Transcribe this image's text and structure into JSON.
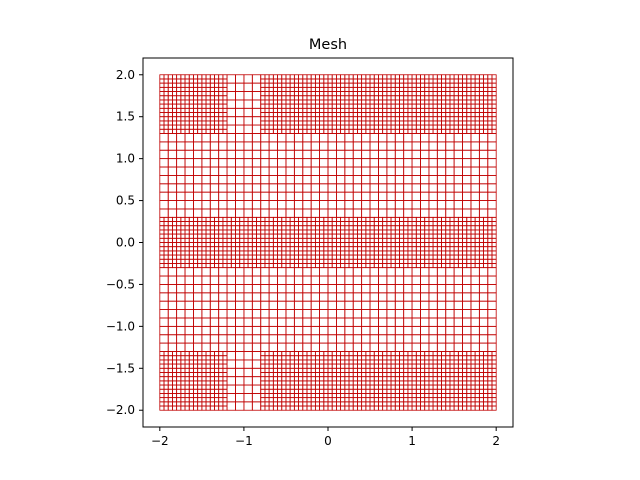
{
  "chart_data": {
    "type": "mesh",
    "title": "Mesh",
    "xlabel": "",
    "ylabel": "",
    "xlim": [
      -2.2,
      2.2
    ],
    "ylim": [
      -2.2,
      2.2
    ],
    "x_ticks": [
      -2,
      -1,
      0,
      1,
      2
    ],
    "x_tick_labels": [
      "−2",
      "−1",
      "0",
      "1",
      "2"
    ],
    "y_ticks": [
      -2.0,
      -1.5,
      -1.0,
      -0.5,
      0.0,
      0.5,
      1.0,
      1.5,
      2.0
    ],
    "y_tick_labels": [
      "−2.0",
      "−1.5",
      "−1.0",
      "−0.5",
      "0.0",
      "0.5",
      "1.0",
      "1.5",
      "2.0"
    ],
    "grid": false,
    "mesh_color": "#c00000",
    "domain": {
      "x": [
        -2.0,
        2.0
      ],
      "y": [
        -2.0,
        2.0
      ]
    },
    "coarse_cell_size": 0.1,
    "refined_cell_size": 0.05,
    "refined_regions": [
      {
        "x": [
          -2.0,
          -1.2
        ],
        "y": [
          1.3,
          2.0
        ]
      },
      {
        "x": [
          -0.8,
          2.0
        ],
        "y": [
          1.3,
          2.0
        ]
      },
      {
        "x": [
          -2.0,
          2.0
        ],
        "y": [
          -0.3,
          0.3
        ]
      },
      {
        "x": [
          -2.0,
          -1.2
        ],
        "y": [
          -2.0,
          -1.3
        ]
      },
      {
        "x": [
          -0.8,
          2.0
        ],
        "y": [
          -2.0,
          -1.3
        ]
      }
    ]
  }
}
